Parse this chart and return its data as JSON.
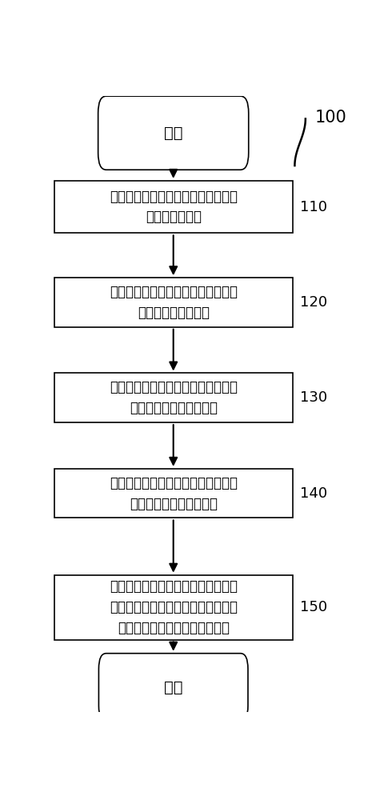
{
  "bg_color": "#ffffff",
  "fig_width": 4.81,
  "fig_height": 10.0,
  "start_label": "开始",
  "end_label": "结束",
  "ref_number": "100",
  "boxes": [
    {
      "label": "建立液体闪烁体计数区、中心计数区\n以及周边计数区",
      "ref": "110"
    },
    {
      "label": "通过中子与液体闪烁体的相互作用获\n得第一中子剂量当量",
      "ref": "120"
    },
    {
      "label": "通过中子与第一中子计数器的相互作\n用获得第二中子剂量当量",
      "ref": "130"
    },
    {
      "label": "通过中子与第二中子计数器的相互作\n用获得第三中子剂量当量",
      "ref": "140"
    },
    {
      "label": "对第一中子剂量当量、第二中子剂量\n当量以及第三中子剂量当量进行计算\n获得所在中子辐射场的剂量当量",
      "ref": "150"
    }
  ],
  "font_size": 12,
  "ref_font_size": 13,
  "label_font_size": 14
}
